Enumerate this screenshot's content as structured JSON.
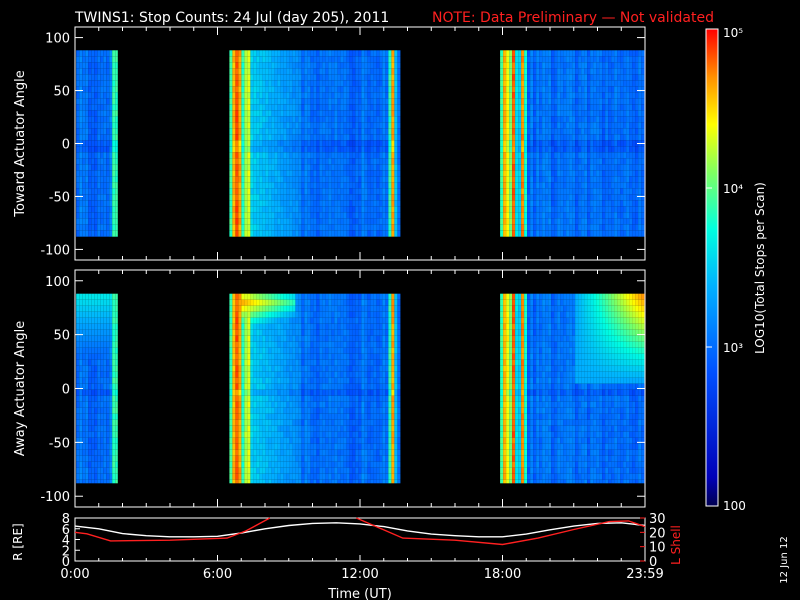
{
  "title": "TWINS1: Stop Counts: 24 Jul (day 205), 2011",
  "note": "NOTE: Data Preliminary — Not validated",
  "date_stamp": "12 Jun 12",
  "colors": {
    "background": "#000000",
    "axis": "#ffffff",
    "note": "#ff2020",
    "r_line": "#ffffff",
    "l_shell_line": "#ff2020"
  },
  "chart_data": [
    {
      "type": "heatmap",
      "panel": "top",
      "ylabel": "Toward Actuator Angle",
      "ylim": [
        -110,
        110
      ],
      "ytick_values": [
        -100,
        -50,
        0,
        50,
        100
      ],
      "ytick_labels": [
        "-100",
        "-50",
        "0",
        "50",
        "100"
      ],
      "angle_range": [
        -88,
        88
      ],
      "xlim_hours": [
        0,
        24
      ],
      "data_intervals_hours": [
        [
          0.05,
          1.8
        ],
        [
          6.5,
          13.7
        ],
        [
          17.9,
          24.0
        ]
      ],
      "bright_bands_hours": [
        6.6,
        6.75,
        6.9,
        7.2,
        13.3,
        18.0,
        18.2,
        18.4,
        18.8
      ],
      "log_count_range": [
        2.0,
        5.0
      ]
    },
    {
      "type": "heatmap",
      "panel": "middle",
      "ylabel": "Away Actuator Angle",
      "ylim": [
        -110,
        110
      ],
      "ytick_values": [
        -100,
        -50,
        0,
        50,
        100
      ],
      "ytick_labels": [
        "-100",
        "-50",
        "0",
        "50",
        "100"
      ],
      "angle_range": [
        -88,
        88
      ],
      "xlim_hours": [
        0,
        24
      ],
      "data_intervals_hours": [
        [
          0.05,
          1.8
        ],
        [
          6.5,
          13.7
        ],
        [
          17.9,
          24.0
        ]
      ],
      "bright_bands_hours": [
        6.6,
        6.75,
        6.9,
        7.2,
        13.3,
        18.0,
        18.2,
        18.4,
        18.8
      ],
      "log_count_range": [
        2.0,
        5.0
      ]
    },
    {
      "type": "line",
      "panel": "bottom",
      "xlabel": "Time (UT)",
      "xlim_hours": [
        0,
        24
      ],
      "xtick_values": [
        0,
        6,
        12,
        18,
        24
      ],
      "xtick_labels": [
        "0:00",
        "6:00",
        "12:00",
        "18:00",
        "23:59"
      ],
      "left_axis": {
        "label": "R [RE]",
        "ylim": [
          0,
          8
        ],
        "ticks": [
          "0",
          "2",
          "4",
          "6",
          "8"
        ]
      },
      "right_axis": {
        "label": "L Shell",
        "ylim": [
          0,
          30
        ],
        "ticks": [
          "0",
          "10",
          "20",
          "30"
        ]
      },
      "series": [
        {
          "name": "R",
          "axis": "left",
          "x": [
            0,
            1,
            2,
            3,
            4,
            5,
            6,
            7,
            8,
            9,
            10,
            11,
            12,
            13,
            14,
            15,
            16,
            17,
            18,
            19,
            20,
            21,
            22,
            23,
            24
          ],
          "values": [
            6.5,
            6.0,
            5.1,
            4.7,
            4.5,
            4.5,
            4.6,
            5.2,
            6.0,
            6.6,
            7.0,
            7.1,
            6.9,
            6.4,
            5.6,
            5.0,
            4.7,
            4.5,
            4.5,
            5.0,
            5.8,
            6.5,
            7.0,
            7.1,
            6.6
          ]
        },
        {
          "name": "L Shell",
          "axis": "right",
          "x": [
            0,
            0.5,
            1.5,
            4,
            6.4,
            7.2,
            8.2,
            8.25,
            11.8,
            11.85,
            13.8,
            16,
            18,
            19.5,
            21,
            22.5,
            23.3,
            24
          ],
          "values": [
            20,
            19,
            14,
            14.5,
            16,
            21,
            30,
            null,
            null,
            30,
            16,
            14.5,
            11.5,
            16,
            22,
            27.5,
            28,
            24
          ]
        }
      ]
    }
  ],
  "colorbar": {
    "label": "LOG10(Total Stops per Scan)",
    "range_log": [
      2,
      5
    ],
    "tick_labels": [
      "100",
      "10³",
      "10⁴",
      "10⁵"
    ],
    "tick_values_log": [
      2,
      3,
      4,
      5
    ]
  }
}
